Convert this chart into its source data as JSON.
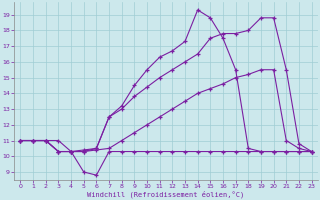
{
  "xlabel": "Windchill (Refroidissement éolien,°C)",
  "xlim": [
    -0.5,
    23.5
  ],
  "ylim": [
    8.5,
    19.8
  ],
  "xticks": [
    0,
    1,
    2,
    3,
    4,
    5,
    6,
    7,
    8,
    9,
    10,
    11,
    12,
    13,
    14,
    15,
    16,
    17,
    18,
    19,
    20,
    21,
    22,
    23
  ],
  "yticks": [
    9,
    10,
    11,
    12,
    13,
    14,
    15,
    16,
    17,
    18,
    19
  ],
  "bg_color": "#cce8ec",
  "line_color": "#7b1fa2",
  "lines": [
    {
      "x": [
        0,
        1,
        2,
        3,
        4,
        5,
        6,
        7,
        8,
        9,
        10,
        11,
        12,
        13,
        14,
        15,
        16,
        17,
        18,
        19,
        20,
        21,
        22,
        23
      ],
      "y": [
        11,
        11,
        11,
        10.3,
        10.3,
        9.0,
        8.8,
        10.3,
        10.3,
        10.3,
        10.3,
        10.3,
        10.3,
        10.3,
        10.3,
        10.3,
        10.3,
        10.3,
        10.3,
        10.3,
        10.3,
        10.3,
        10.3,
        10.3
      ]
    },
    {
      "x": [
        0,
        1,
        2,
        3,
        4,
        5,
        6,
        7,
        8,
        9,
        10,
        11,
        12,
        13,
        14,
        15,
        16,
        17,
        18,
        19,
        20,
        21,
        22,
        23
      ],
      "y": [
        11,
        11,
        11,
        11,
        10.3,
        10.3,
        10.4,
        10.5,
        11.0,
        11.5,
        12.0,
        12.5,
        13.0,
        13.5,
        14.0,
        14.3,
        14.6,
        15.0,
        15.2,
        15.5,
        15.5,
        11.0,
        10.5,
        10.3
      ]
    },
    {
      "x": [
        0,
        1,
        2,
        3,
        4,
        5,
        6,
        7,
        8,
        9,
        10,
        11,
        12,
        13,
        14,
        15,
        16,
        17,
        18,
        19,
        20,
        21,
        22,
        23
      ],
      "y": [
        11,
        11,
        11,
        10.3,
        10.3,
        10.3,
        10.5,
        12.5,
        13.0,
        13.8,
        14.4,
        15.0,
        15.5,
        16.0,
        16.5,
        17.5,
        17.8,
        17.8,
        18.0,
        18.8,
        18.8,
        15.5,
        10.8,
        10.3
      ]
    },
    {
      "x": [
        0,
        1,
        2,
        3,
        4,
        5,
        6,
        7,
        8,
        9,
        10,
        11,
        12,
        13,
        14,
        15,
        16,
        17,
        18,
        19,
        20,
        21,
        22,
        23
      ],
      "y": [
        11,
        11,
        11,
        10.3,
        10.3,
        10.4,
        10.5,
        12.5,
        13.2,
        14.5,
        15.5,
        16.3,
        16.7,
        17.3,
        19.3,
        18.8,
        17.5,
        15.5,
        10.5,
        10.3,
        10.3,
        10.3,
        10.3,
        10.3
      ]
    }
  ]
}
